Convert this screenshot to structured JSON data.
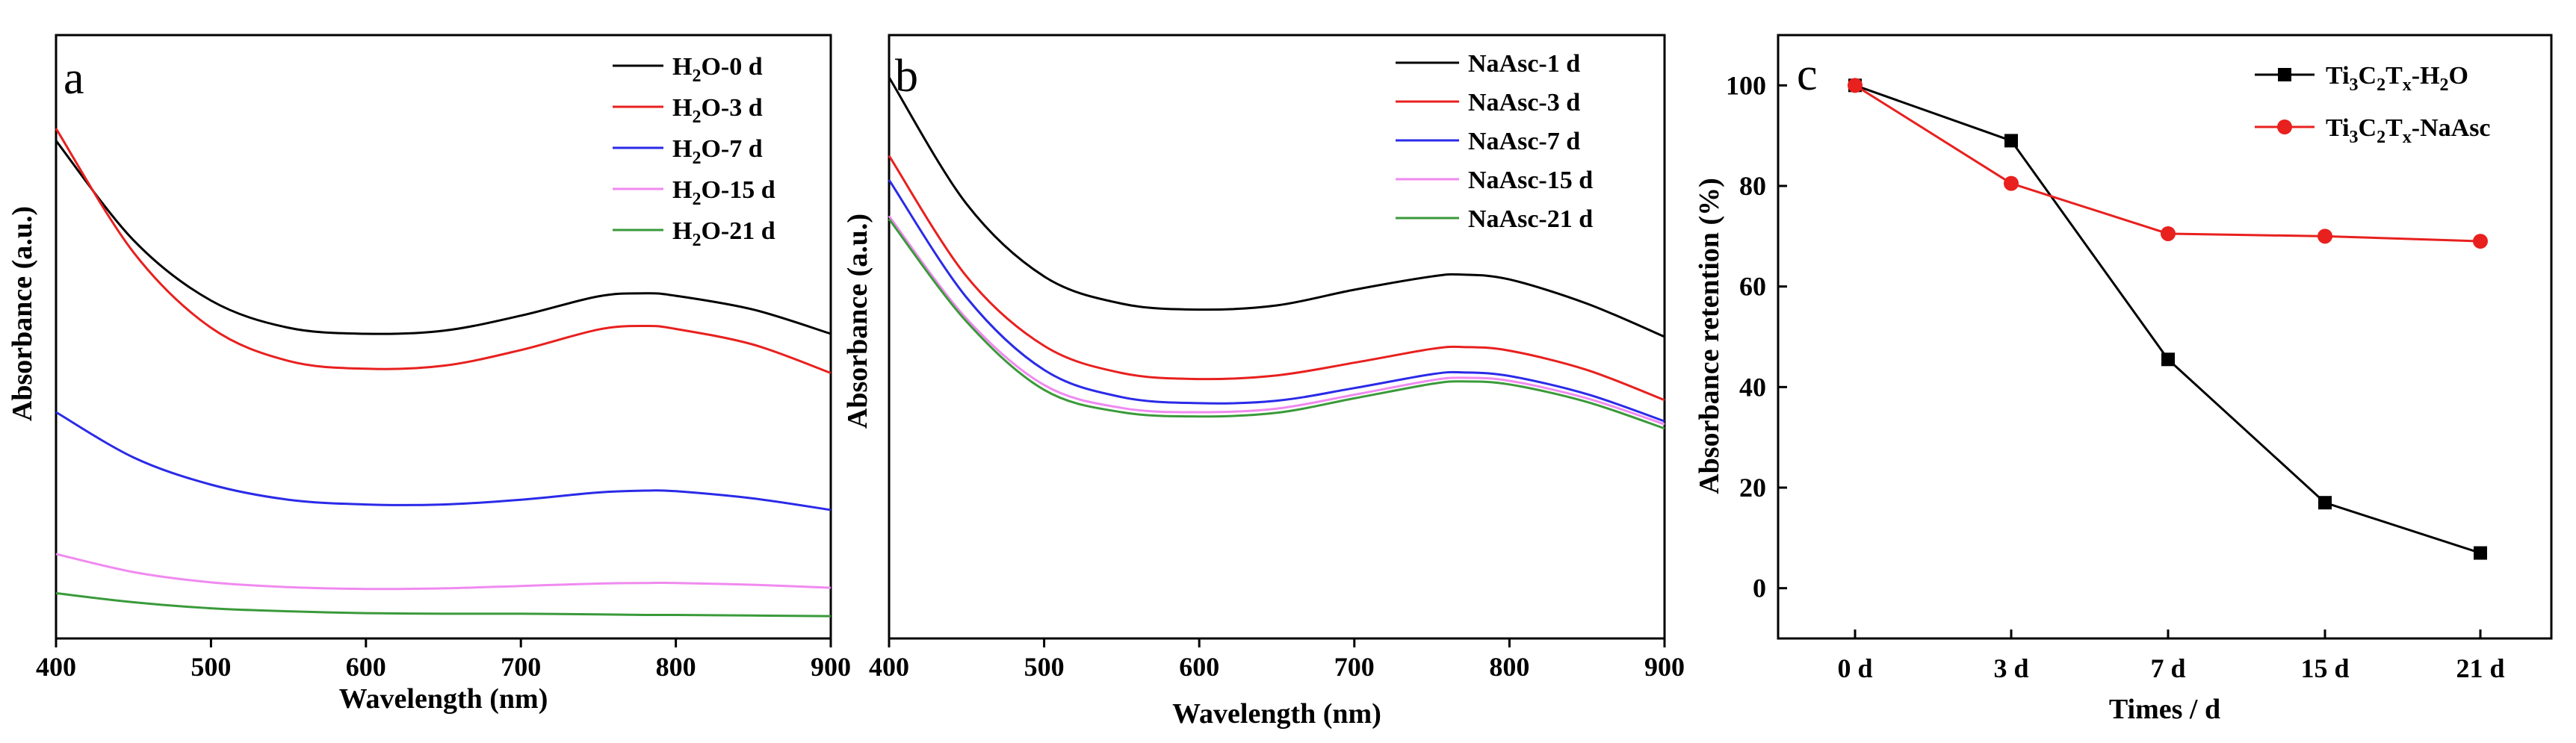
{
  "chart_data": [
    {
      "type": "line",
      "panel_label": "a",
      "xlabel": "Wavelength (nm)",
      "ylabel": "Absorbance (a.u.)",
      "xlim": [
        400,
        900
      ],
      "ylim": [
        0,
        1
      ],
      "xticks": [
        "400",
        "500",
        "600",
        "700",
        "800",
        "900"
      ],
      "legend_position": "top-right",
      "series": [
        {
          "name": "H2O-0 d",
          "label_main": "H",
          "label_sub": "2",
          "label_rest": "O-0 d",
          "color": "#000000",
          "x": [
            400,
            450,
            500,
            550,
            600,
            650,
            700,
            750,
            780,
            800,
            850,
            900
          ],
          "y": [
            0.825,
            0.66,
            0.56,
            0.515,
            0.505,
            0.51,
            0.535,
            0.567,
            0.572,
            0.568,
            0.545,
            0.505
          ]
        },
        {
          "name": "H2O-3 d",
          "label_main": "H",
          "label_sub": "2",
          "label_rest": "O-3 d",
          "color": "#e8201e",
          "x": [
            400,
            450,
            500,
            550,
            600,
            650,
            700,
            750,
            780,
            800,
            850,
            900
          ],
          "y": [
            0.845,
            0.64,
            0.515,
            0.46,
            0.447,
            0.452,
            0.478,
            0.512,
            0.518,
            0.513,
            0.487,
            0.44
          ]
        },
        {
          "name": "H2O-7 d",
          "label_main": "H",
          "label_sub": "2",
          "label_rest": "O-7 d",
          "color": "#2a2ae8",
          "x": [
            400,
            450,
            500,
            550,
            600,
            650,
            700,
            750,
            780,
            800,
            850,
            900
          ],
          "y": [
            0.375,
            0.3,
            0.255,
            0.23,
            0.222,
            0.222,
            0.23,
            0.242,
            0.245,
            0.244,
            0.232,
            0.213
          ]
        },
        {
          "name": "H2O-15 d",
          "label_main": "H",
          "label_sub": "2",
          "label_rest": "O-15 d",
          "color": "#f08af0",
          "x": [
            400,
            450,
            500,
            550,
            600,
            650,
            700,
            750,
            780,
            800,
            850,
            900
          ],
          "y": [
            0.14,
            0.11,
            0.093,
            0.085,
            0.082,
            0.083,
            0.087,
            0.091,
            0.092,
            0.092,
            0.089,
            0.084
          ]
        },
        {
          "name": "H2O-21 d",
          "label_main": "H",
          "label_sub": "2",
          "label_rest": "O-21 d",
          "color": "#3a9a3a",
          "x": [
            400,
            450,
            500,
            550,
            600,
            650,
            700,
            750,
            780,
            800,
            850,
            900
          ],
          "y": [
            0.075,
            0.06,
            0.05,
            0.045,
            0.042,
            0.041,
            0.041,
            0.04,
            0.039,
            0.039,
            0.038,
            0.037
          ]
        }
      ]
    },
    {
      "type": "line",
      "panel_label": "b",
      "xlabel": "Wavelength (nm)",
      "ylabel": "Absorbance (a.u.)",
      "xlim": [
        400,
        900
      ],
      "ylim": [
        0,
        1
      ],
      "xticks": [
        "400",
        "500",
        "600",
        "700",
        "800",
        "900"
      ],
      "legend_position": "top-right",
      "series": [
        {
          "name": "NaAsc-1 d",
          "label_main": "NaAsc-1 d",
          "label_sub": "",
          "label_rest": "",
          "color": "#000000",
          "x": [
            400,
            450,
            500,
            550,
            600,
            650,
            700,
            750,
            770,
            800,
            850,
            900
          ],
          "y": [
            0.93,
            0.72,
            0.6,
            0.555,
            0.545,
            0.552,
            0.578,
            0.6,
            0.603,
            0.595,
            0.555,
            0.5
          ]
        },
        {
          "name": "NaAsc-3 d",
          "label_main": "NaAsc-3 d",
          "label_sub": "",
          "label_rest": "",
          "color": "#e8201e",
          "x": [
            400,
            450,
            500,
            550,
            600,
            650,
            700,
            750,
            770,
            800,
            850,
            900
          ],
          "y": [
            0.8,
            0.6,
            0.485,
            0.44,
            0.43,
            0.436,
            0.457,
            0.48,
            0.483,
            0.477,
            0.445,
            0.395
          ]
        },
        {
          "name": "NaAsc-7 d",
          "label_main": "NaAsc-7 d",
          "label_sub": "",
          "label_rest": "",
          "color": "#2a2ae8",
          "x": [
            400,
            450,
            500,
            550,
            600,
            650,
            700,
            750,
            770,
            800,
            850,
            900
          ],
          "y": [
            0.76,
            0.565,
            0.445,
            0.4,
            0.39,
            0.394,
            0.415,
            0.438,
            0.441,
            0.435,
            0.405,
            0.36
          ]
        },
        {
          "name": "NaAsc-15 d",
          "label_main": "NaAsc-15 d",
          "label_sub": "",
          "label_rest": "",
          "color": "#f08af0",
          "x": [
            400,
            450,
            500,
            550,
            600,
            650,
            700,
            750,
            770,
            800,
            850,
            900
          ],
          "y": [
            0.7,
            0.53,
            0.42,
            0.382,
            0.375,
            0.381,
            0.404,
            0.428,
            0.432,
            0.427,
            0.398,
            0.355
          ]
        },
        {
          "name": "NaAsc-21 d",
          "label_main": "NaAsc-21 d",
          "label_sub": "",
          "label_rest": "",
          "color": "#3a9a3a",
          "x": [
            400,
            450,
            500,
            550,
            600,
            650,
            700,
            750,
            770,
            800,
            850,
            900
          ],
          "y": [
            0.695,
            0.525,
            0.412,
            0.375,
            0.368,
            0.374,
            0.398,
            0.422,
            0.426,
            0.421,
            0.392,
            0.348
          ]
        }
      ]
    },
    {
      "type": "line",
      "panel_label": "c",
      "xlabel": "Times / d",
      "ylabel": "Absorbance retention (%)",
      "categories": [
        "0 d",
        "3 d",
        "7 d",
        "15 d",
        "21 d"
      ],
      "ylim": [
        -10,
        110
      ],
      "yticks": [
        "0",
        "20",
        "40",
        "60",
        "80",
        "100"
      ],
      "legend_position": "top-right",
      "series": [
        {
          "name": "Ti3C2Tx-H2O",
          "marker": "square",
          "color": "#000000",
          "label_parts": [
            [
              "Ti",
              ""
            ],
            [
              "3",
              "sub"
            ],
            [
              "C",
              ""
            ],
            [
              "2",
              "sub"
            ],
            [
              "T",
              ""
            ],
            [
              "x",
              "sub"
            ],
            [
              "-H",
              ""
            ],
            [
              "2",
              "sub"
            ],
            [
              "O",
              ""
            ]
          ],
          "values": [
            100,
            89,
            45.5,
            17,
            7
          ]
        },
        {
          "name": "Ti3C2Tx-NaAsc",
          "marker": "circle",
          "color": "#e8201e",
          "label_parts": [
            [
              "Ti",
              ""
            ],
            [
              "3",
              "sub"
            ],
            [
              "C",
              ""
            ],
            [
              "2",
              "sub"
            ],
            [
              "T",
              ""
            ],
            [
              "x",
              "sub"
            ],
            [
              "-NaAsc",
              ""
            ]
          ],
          "values": [
            100,
            80.5,
            70.5,
            70,
            69
          ]
        }
      ]
    }
  ]
}
